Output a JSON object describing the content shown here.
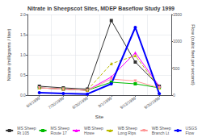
{
  "chart_data": {
    "type": "line",
    "title": "Nitrate in Sheepscot Sites, MDEP Baseflow Study 1999",
    "x_label": "Site",
    "y_label": "Nitrate (milligrams / liter)",
    "y2_label": "Flow (cubic feet per second)",
    "categories": [
      "6/4/1999",
      "7/30/1999",
      "8/30/1999",
      "9/1/1999",
      "9/13/1999",
      "9/30/1999"
    ],
    "series": [
      {
        "name": "MS Sheep\nRt 105",
        "color": "#333333",
        "marker": "square",
        "line_style": "solid",
        "values": [
          0.22,
          0.18,
          0.15,
          1.85,
          0.82,
          0.22
        ]
      },
      {
        "name": "MS Sheep\nRoute 17",
        "color": "#00bb00",
        "marker": "square",
        "line_style": "solid",
        "values": [
          0.18,
          0.15,
          0.12,
          0.32,
          0.28,
          0.18
        ]
      },
      {
        "name": "WB Sheep\nHowe",
        "color": "#ff00ff",
        "marker": "triangle",
        "line_style": "solid",
        "values": [
          0.18,
          0.15,
          0.12,
          0.45,
          1.05,
          0.22
        ]
      },
      {
        "name": "WB Sheep\nLong Rips",
        "color": "#bbbb00",
        "marker": "triangle",
        "line_style": "dashed",
        "values": [
          0.18,
          0.15,
          0.12,
          0.78,
          0.98,
          0.18
        ]
      },
      {
        "name": "WB Sheep\nBranch Lt",
        "color": "#ff9999",
        "marker": "triangle_down",
        "line_style": "solid",
        "values": [
          0.18,
          0.15,
          0.12,
          0.4,
          0.35,
          0.18
        ]
      },
      {
        "name": "USGS\nFlow",
        "color": "#0000ff",
        "marker": "circle",
        "line_style": "solid",
        "axis": "y2",
        "values": [
          45,
          30,
          20,
          210,
          1260,
          25
        ]
      }
    ],
    "ylim": [
      0.0,
      2.0
    ],
    "yticks": [
      {
        "value": 0.0,
        "label": "0.0"
      },
      {
        "value": 0.5,
        "label": "0.5"
      },
      {
        "value": 1.0,
        "label": "1.0"
      },
      {
        "value": 1.5,
        "label": "1.5"
      },
      {
        "value": 2.0,
        "label": "2.0"
      }
    ],
    "y2lim": [
      0,
      1500
    ],
    "y2ticks": [
      0,
      500,
      1000,
      1500
    ],
    "grid": true,
    "legend": "bottom"
  }
}
